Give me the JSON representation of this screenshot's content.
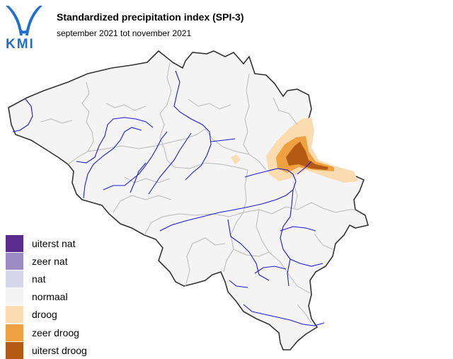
{
  "logo": {
    "text": "KMI",
    "color": "#1f6fd1"
  },
  "title": "Standardized precipitation index (SPI-3)",
  "subtitle": "september 2021 tot november 2021",
  "legend": [
    {
      "label": "uiterst nat",
      "color": "#5b2c8e"
    },
    {
      "label": "zeer nat",
      "color": "#9b8cc6"
    },
    {
      "label": "nat",
      "color": "#d6d6ea"
    },
    {
      "label": "normaal",
      "color": "#f4f4f4"
    },
    {
      "label": "droog",
      "color": "#fbdcb0"
    },
    {
      "label": "zeer droog",
      "color": "#efa040"
    },
    {
      "label": "uiterst droog",
      "color": "#b55a12"
    }
  ],
  "map": {
    "land_color": "#f4f4f4",
    "border_color": "#333333",
    "province_border_color": "#b9b9b9",
    "river_color": "#1a1adb"
  }
}
